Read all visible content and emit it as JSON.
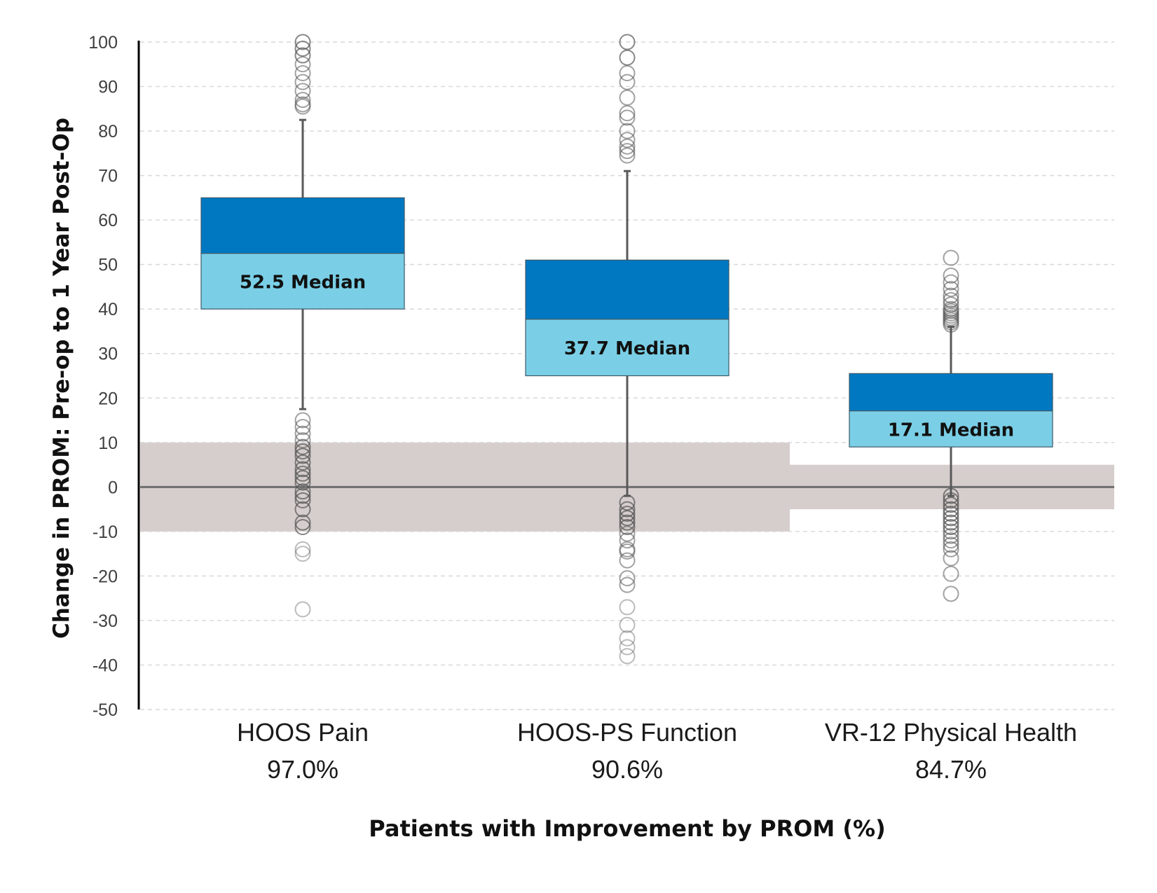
{
  "chart_data": {
    "type": "boxplot",
    "title": "",
    "xlabel": "Patients with Improvement by PROM (%)",
    "ylabel": "Change in PROM: Pre-op to 1 Year Post-Op",
    "ylim": [
      -50,
      100
    ],
    "yticks": [
      100,
      90,
      80,
      70,
      60,
      50,
      40,
      30,
      20,
      10,
      0,
      -10,
      -20,
      -30,
      -40,
      -50
    ],
    "grid": true,
    "colors": {
      "upper_box": "#0078C1",
      "lower_box": "#7ACFE6",
      "band": "#D6CECD",
      "whisker": "#595959",
      "zero_line": "#6E6E6E"
    },
    "categories": [
      {
        "name": "HOOS Pain",
        "percent": "97.0%",
        "q1": 40,
        "median": 52.5,
        "q3": 65,
        "whisker_low": 17.5,
        "whisker_high": 82.5,
        "median_label": "52.5 Median",
        "mcid_band": [
          -10,
          10
        ],
        "outliers": [
          100,
          98.5,
          97,
          95,
          93,
          91,
          89,
          87,
          86,
          85.5,
          15,
          13.5,
          12,
          10.5,
          9,
          8,
          7,
          5.5,
          4,
          3,
          2,
          1,
          -1,
          -2,
          -3,
          -5,
          -8,
          -9,
          -14,
          -15,
          -27.5
        ]
      },
      {
        "name": "HOOS-PS Function",
        "percent": "90.6%",
        "q1": 25,
        "median": 37.7,
        "q3": 51,
        "whisker_low": -2,
        "whisker_high": 71,
        "median_label": "37.7 Median",
        "mcid_band": [
          -10,
          10
        ],
        "outliers": [
          100,
          96.5,
          93,
          91,
          87.5,
          84,
          83,
          80,
          78,
          76.5,
          75.5,
          74.5,
          -3.5,
          -5,
          -6,
          -7,
          -8,
          -9,
          -10.5,
          -12,
          -14,
          -14.5,
          -16.5,
          -20.5,
          -22,
          -27,
          -31,
          -34,
          -36,
          -38
        ]
      },
      {
        "name": "VR-12 Physical Health",
        "percent": "84.7%",
        "q1": 9,
        "median": 17.1,
        "q3": 25.5,
        "whisker_low": -2,
        "whisker_high": 36,
        "median_label": "17.1 Median",
        "mcid_band": [
          -5,
          5
        ],
        "outliers": [
          51.5,
          47.5,
          46,
          44.5,
          43,
          42,
          41,
          40,
          39.5,
          39,
          38.5,
          38,
          37.5,
          37,
          36.5,
          -2,
          -3,
          -4,
          -5,
          -6,
          -7,
          -8,
          -9,
          -10,
          -11,
          -12,
          -13,
          -14,
          -16,
          -19.5,
          -24
        ]
      }
    ]
  }
}
